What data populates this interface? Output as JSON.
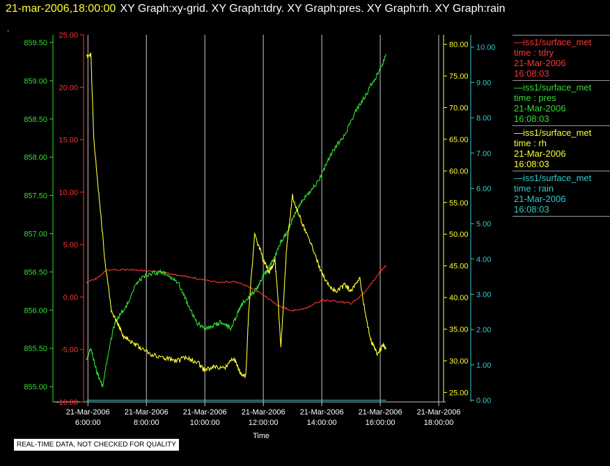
{
  "header": {
    "date": "21-mar-2006,18:00:00",
    "graphs": "XY Graph:xy-grid.  XY Graph:tdry.  XY Graph:pres.  XY Graph:rh.  XY Graph:rain"
  },
  "dot": ".",
  "footer_note": "REAL-TIME DATA, NOT CHECKED FOR QUALITY",
  "colors": {
    "tdry": "#ff3333",
    "pres": "#33dd33",
    "rh": "#ffff33",
    "rain": "#33cccc",
    "grid": "#c8c8c8"
  },
  "legend": [
    {
      "series": "tdry",
      "name": "—iss1/surface_met",
      "var": "time : tdry",
      "date": "21-Mar-2006",
      "time": "16:08:03"
    },
    {
      "series": "pres",
      "name": "—iss1/surface_met",
      "var": "time : pres",
      "date": "21-Mar-2006",
      "time": "16:08:03"
    },
    {
      "series": "rh",
      "name": "—iss1/surface_met",
      "var": "time : rh",
      "date": "21-Mar-2006",
      "time": "16:08:03"
    },
    {
      "series": "rain",
      "name": "—iss1/surface_met",
      "var": "time : rain",
      "date": "21-Mar-2006",
      "time": "16:08:03"
    }
  ],
  "chart_data": {
    "type": "line",
    "xlabel": "Time",
    "x_ticks": [
      {
        "hour": 6,
        "date": "21-Mar-2006",
        "time": "6:00:00"
      },
      {
        "hour": 8,
        "date": "21-Mar-2006",
        "time": "8:00:00"
      },
      {
        "hour": 10,
        "date": "21-Mar-2006",
        "time": "10:00:00"
      },
      {
        "hour": 12,
        "date": "21-Mar-2006",
        "time": "12:00:00"
      },
      {
        "hour": 14,
        "date": "21-Mar-2006",
        "time": "14:00:00"
      },
      {
        "hour": 16,
        "date": "21-Mar-2006",
        "time": "16:00:00"
      },
      {
        "hour": 18,
        "date": "21-Mar-2006",
        "time": "18:00:00"
      }
    ],
    "xlim_hours": [
      5.85,
      18.0
    ],
    "grid": true,
    "axes": {
      "pres": {
        "ylim": [
          854.8,
          859.6
        ],
        "ticks": [
          "855.00",
          "855.50",
          "856.00",
          "856.50",
          "857.00",
          "857.50",
          "858.00",
          "858.50",
          "859.00",
          "859.50"
        ]
      },
      "tdry": {
        "ylim": [
          -10,
          25
        ],
        "ticks": [
          "-10.00",
          "-5.00",
          "0.00",
          "5.00",
          "10.00",
          "15.00",
          "20.00",
          "25.00"
        ]
      },
      "rh": {
        "ylim": [
          23.5,
          81.5
        ],
        "ticks": [
          "25.00",
          "30.00",
          "35.00",
          "40.00",
          "45.00",
          "50.00",
          "55.00",
          "60.00",
          "65.00",
          "70.00",
          "75.00",
          "80.00"
        ]
      },
      "rain": {
        "ylim": [
          -0.05,
          10.35
        ],
        "ticks": [
          "0.00",
          "1.00",
          "2.00",
          "3.00",
          "4.00",
          "5.00",
          "6.00",
          "7.00",
          "8.00",
          "9.00",
          "10.00"
        ]
      }
    },
    "series": [
      {
        "key": "tdry",
        "x": [
          5.95,
          6.3,
          6.6,
          7.0,
          7.5,
          8.0,
          8.5,
          9.0,
          9.5,
          10.0,
          10.5,
          11.0,
          11.5,
          12.0,
          12.5,
          13.0,
          13.5,
          14.0,
          14.5,
          15.0,
          15.5,
          16.0,
          16.2
        ],
        "values": [
          1.4,
          1.8,
          2.5,
          2.6,
          2.6,
          2.5,
          2.4,
          2.1,
          1.9,
          1.6,
          1.4,
          1.5,
          1.0,
          0.2,
          -0.8,
          -1.3,
          -1.0,
          -0.3,
          -0.4,
          -0.6,
          0.5,
          2.5,
          3.0
        ]
      },
      {
        "key": "pres",
        "x": [
          5.95,
          6.1,
          6.3,
          6.5,
          6.7,
          6.9,
          7.1,
          7.3,
          7.6,
          7.9,
          8.2,
          8.5,
          8.8,
          9.1,
          9.4,
          9.7,
          10.0,
          10.3,
          10.6,
          10.9,
          11.1,
          11.3,
          11.6,
          11.8,
          12.0,
          12.2,
          12.4,
          12.6,
          12.8,
          13.0,
          13.3,
          13.6,
          13.9,
          14.2,
          14.5,
          14.8,
          15.1,
          15.4,
          15.7,
          16.0,
          16.2
        ],
        "values": [
          855.35,
          855.5,
          855.2,
          855.0,
          855.45,
          855.8,
          855.95,
          856.05,
          856.3,
          856.45,
          856.48,
          856.5,
          856.45,
          856.35,
          856.1,
          855.85,
          855.75,
          855.8,
          855.85,
          855.75,
          855.95,
          856.1,
          856.2,
          856.3,
          856.45,
          856.55,
          856.7,
          856.9,
          857.0,
          857.2,
          857.4,
          857.55,
          857.7,
          857.95,
          858.15,
          858.3,
          858.55,
          858.75,
          858.95,
          859.15,
          859.35
        ]
      },
      {
        "key": "rh",
        "x": [
          5.95,
          6.1,
          6.2,
          6.4,
          6.6,
          6.8,
          7.0,
          7.2,
          7.5,
          7.8,
          8.2,
          8.6,
          9.0,
          9.4,
          9.8,
          10.0,
          10.3,
          10.7,
          11.0,
          11.2,
          11.4,
          11.5,
          11.7,
          12.0,
          12.2,
          12.4,
          12.5,
          12.6,
          12.8,
          13.0,
          13.3,
          13.6,
          13.9,
          14.2,
          14.5,
          14.8,
          15.0,
          15.3,
          15.5,
          15.7,
          15.9,
          16.1,
          16.2
        ],
        "values": [
          78.0,
          78.5,
          65.0,
          55.0,
          45.0,
          38.0,
          36.0,
          34.0,
          33.0,
          32.0,
          31.0,
          30.5,
          30.0,
          30.5,
          29.5,
          28.5,
          29.0,
          29.0,
          30.5,
          28.0,
          27.5,
          38.0,
          50.0,
          46.0,
          44.0,
          46.0,
          40.0,
          32.0,
          48.0,
          56.0,
          52.0,
          49.0,
          45.0,
          42.0,
          41.0,
          42.0,
          41.0,
          43.0,
          37.0,
          33.0,
          31.0,
          32.5,
          32.0
        ]
      },
      {
        "key": "rain",
        "x": [
          5.95,
          16.2
        ],
        "values": [
          0.0,
          0.0
        ]
      }
    ]
  }
}
